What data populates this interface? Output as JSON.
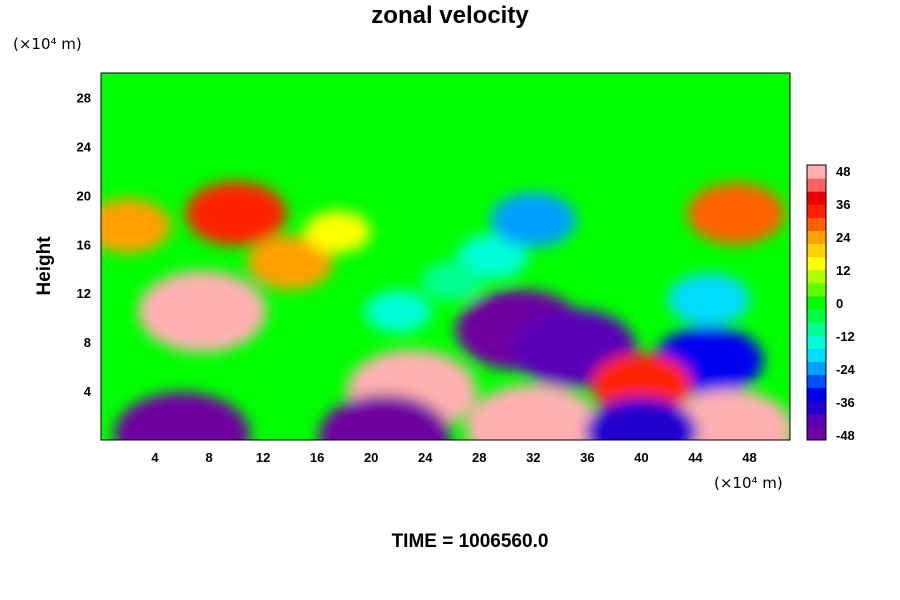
{
  "chart_data": {
    "type": "heatmap",
    "title": "zonal velocity",
    "ylabel": "Height",
    "xlabel": "",
    "x_unit_label": "(×10⁴ m)",
    "y_unit_label": "(×10⁴ m)",
    "xlim": [
      0,
      51
    ],
    "ylim": [
      0,
      30
    ],
    "x_ticks": [
      4,
      8,
      12,
      16,
      20,
      24,
      28,
      32,
      36,
      40,
      44,
      48
    ],
    "y_ticks": [
      4,
      8,
      12,
      16,
      20,
      24,
      28
    ],
    "colorbar": {
      "range": [
        -48,
        48
      ],
      "tick_labels": [
        "48",
        "36",
        "24",
        "12",
        "0",
        "-12",
        "-24",
        "-36",
        "-48"
      ],
      "colors": [
        "#7000a0",
        "#5a00b8",
        "#2000d0",
        "#0000f0",
        "#0050ff",
        "#00a0ff",
        "#00dcff",
        "#00ffd8",
        "#00ff90",
        "#00ff40",
        "#00ff00",
        "#60ff00",
        "#b0ff00",
        "#ffff00",
        "#ffd000",
        "#ffa000",
        "#ff6000",
        "#ff2000",
        "#f00000",
        "#ff6060",
        "#ffb0b0"
      ]
    },
    "features": [
      {
        "x": 7.5,
        "y": 10.5,
        "value": 44
      },
      {
        "x": 10.0,
        "y": 18.5,
        "value": 30
      },
      {
        "x": 14.0,
        "y": 14.5,
        "value": 22
      },
      {
        "x": 17.5,
        "y": 17.0,
        "value": 12
      },
      {
        "x": 31.0,
        "y": 9.0,
        "value": -44
      },
      {
        "x": 35.0,
        "y": 7.5,
        "value": -42
      },
      {
        "x": 29.0,
        "y": 15.0,
        "value": -14
      },
      {
        "x": 32.0,
        "y": 18.0,
        "value": -22
      },
      {
        "x": 45.0,
        "y": 6.5,
        "value": -34
      },
      {
        "x": 45.0,
        "y": 11.5,
        "value": -20
      },
      {
        "x": 22.0,
        "y": 10.5,
        "value": -12
      },
      {
        "x": 23.0,
        "y": 4.0,
        "value": 45
      },
      {
        "x": 32.0,
        "y": 1.0,
        "value": 48
      },
      {
        "x": 46.5,
        "y": 0.8,
        "value": 44
      },
      {
        "x": 40.0,
        "y": 4.5,
        "value": 30
      },
      {
        "x": 6.0,
        "y": 0.4,
        "value": -48
      },
      {
        "x": 21.0,
        "y": 0.3,
        "value": -46
      },
      {
        "x": 40.0,
        "y": 0.6,
        "value": -36
      },
      {
        "x": 47.0,
        "y": 18.5,
        "value": 28
      },
      {
        "x": 26.0,
        "y": 13.0,
        "value": -10
      },
      {
        "x": 2.0,
        "y": 17.5,
        "value": 22
      }
    ]
  },
  "time_label": "TIME = 1006560.0"
}
